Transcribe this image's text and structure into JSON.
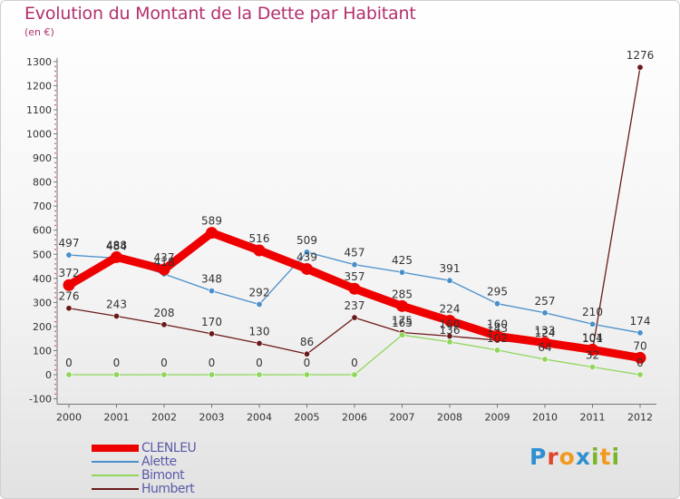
{
  "chart_data": {
    "type": "line",
    "title": "Evolution du Montant de la Dette par Habitant",
    "subtitle": "(en €)",
    "categories": [
      "2000",
      "2001",
      "2002",
      "2003",
      "2004",
      "2005",
      "2006",
      "2007",
      "2008",
      "2009",
      "2010",
      "2011",
      "2012"
    ],
    "ylim": [
      -100,
      1300
    ],
    "yticks": [
      "-100",
      "0",
      "100",
      "200",
      "300",
      "400",
      "500",
      "600",
      "700",
      "800",
      "900",
      "1000",
      "1100",
      "1200",
      "1300"
    ],
    "legend_position": "bottom-left",
    "series": [
      {
        "name": "CLENLEU",
        "color": "#ee0000",
        "values": [
          372,
          488,
          437,
          589,
          516,
          439,
          357,
          285,
          224,
          160,
          133,
          104,
          70
        ]
      },
      {
        "name": "Alette",
        "color": "#4a8fca",
        "values": [
          497,
          484,
          418,
          348,
          292,
          509,
          457,
          425,
          391,
          295,
          257,
          210,
          174
        ]
      },
      {
        "name": "Bimont",
        "color": "#8fd65a",
        "values": [
          0,
          0,
          0,
          0,
          0,
          0,
          0,
          165,
          136,
          102,
          64,
          32,
          0
        ]
      },
      {
        "name": "Humbert",
        "color": "#6b1a1a",
        "values": [
          276,
          243,
          208,
          170,
          130,
          86,
          237,
          175,
          160,
          143,
          124,
          101,
          1276
        ]
      }
    ]
  },
  "logo": {
    "letters": [
      "P",
      "r",
      "o",
      "x",
      "i",
      "t",
      "i"
    ]
  }
}
